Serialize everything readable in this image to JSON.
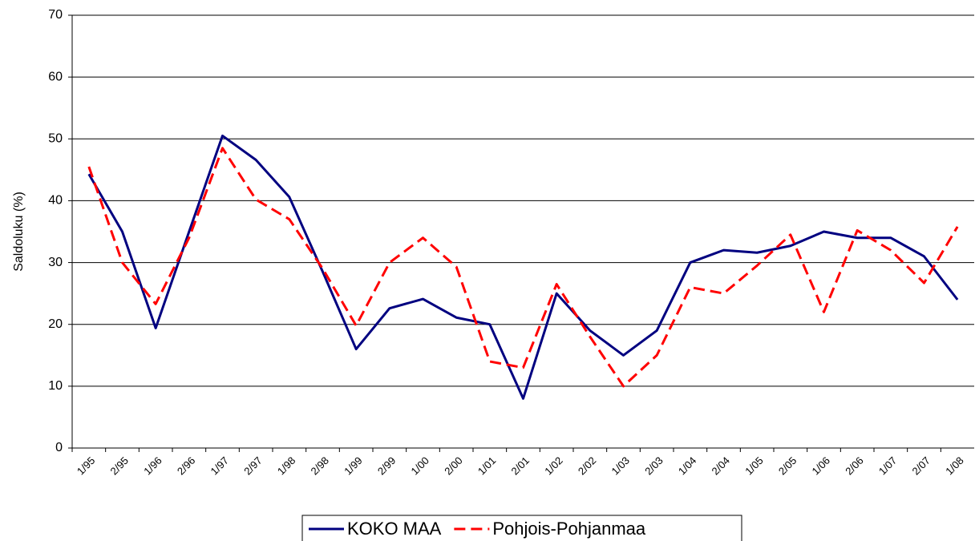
{
  "chart_data": {
    "type": "line",
    "y_label": "Saldoluku (%)",
    "categories": [
      "1/95",
      "2/95",
      "1/96",
      "2/96",
      "1/97",
      "2/97",
      "1/98",
      "2/98",
      "1/99",
      "2/99",
      "1/00",
      "2/00",
      "1/01",
      "2/01",
      "1/02",
      "2/02",
      "1/03",
      "2/03",
      "1/04",
      "2/04",
      "1/05",
      "2/05",
      "1/06",
      "2/06",
      "1/07",
      "2/07",
      "1/08"
    ],
    "series": [
      {
        "name": "KOKO MAA",
        "color": "#000080",
        "dash": false,
        "values": [
          44.3,
          35,
          19.4,
          35,
          50.5,
          46.6,
          40.6,
          28.5,
          16,
          22.6,
          24.1,
          21.1,
          20,
          8,
          25,
          19,
          15,
          19,
          30,
          32,
          31.6,
          32.7,
          35,
          34,
          34,
          31,
          24
        ]
      },
      {
        "name": "Pohjois-Pohjanmaa",
        "color": "#ff0000",
        "dash": true,
        "values": [
          45.5,
          30,
          23.3,
          34,
          48.5,
          40.2,
          37,
          29,
          19.8,
          30,
          34,
          29.3,
          14,
          13,
          26.5,
          18,
          10,
          15,
          26,
          25,
          29.5,
          34.5,
          22,
          35.2,
          32,
          26.7,
          35.8
        ]
      }
    ],
    "ylim": [
      0,
      70
    ],
    "yticks": [
      0,
      10,
      20,
      30,
      40,
      50,
      60,
      70
    ],
    "grid": true,
    "legend": "bottom"
  }
}
